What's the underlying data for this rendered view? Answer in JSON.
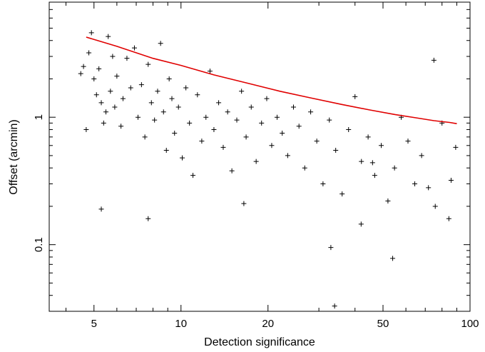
{
  "chart_data": {
    "type": "scatter",
    "title": "",
    "xlabel": "Detection significance",
    "ylabel": "Offset (arcmin)",
    "x_scale": "log",
    "y_scale": "log",
    "xlim": [
      3.5,
      100
    ],
    "ylim": [
      0.03,
      8
    ],
    "x_ticks": [
      {
        "value": 5,
        "label": "5"
      },
      {
        "value": 10,
        "label": "10"
      },
      {
        "value": 20,
        "label": "20"
      },
      {
        "value": 50,
        "label": "50"
      },
      {
        "value": 100,
        "label": "100"
      }
    ],
    "y_ticks": [
      {
        "value": 0.1,
        "label": "0.1"
      },
      {
        "value": 1,
        "label": "1"
      }
    ],
    "grid": false,
    "legend": "none",
    "colors": {
      "points": "#000000",
      "curve": "#e00000"
    },
    "points_marker": "plus",
    "series": [
      {
        "kind": "points",
        "x": [
          4.5,
          4.6,
          4.7,
          4.8,
          4.9,
          5.0,
          5.1,
          5.2,
          5.3,
          5.4,
          5.5,
          5.6,
          5.7,
          5.8,
          5.9,
          6.0,
          6.2,
          6.3,
          6.5,
          6.7,
          6.9,
          7.1,
          7.3,
          7.5,
          7.7,
          7.9,
          8.1,
          8.3,
          8.5,
          8.7,
          8.9,
          9.1,
          9.3,
          9.5,
          9.8,
          10.1,
          10.4,
          10.7,
          11.0,
          11.4,
          11.8,
          12.2,
          12.6,
          13.0,
          13.5,
          14.0,
          14.5,
          15.0,
          15.6,
          16.2,
          16.8,
          17.5,
          18.2,
          19.0,
          19.8,
          20.6,
          21.5,
          22.4,
          23.4,
          24.5,
          25.6,
          26.8,
          28.1,
          29.5,
          31.0,
          32.6,
          34.3,
          36.1,
          38.0,
          40.0,
          42.1,
          44.4,
          46.8,
          49.3,
          52.0,
          54.8,
          57.8,
          61.0,
          64.4,
          68.0,
          71.8,
          75.8,
          80.0,
          84.5,
          89.2,
          5.3,
          7.7,
          16.5,
          33.0,
          34.0,
          54.0,
          75.0,
          86.0,
          46.0,
          42.0
        ],
        "y": [
          2.2,
          2.5,
          0.8,
          3.2,
          4.6,
          2.0,
          1.5,
          2.4,
          1.3,
          0.9,
          1.1,
          4.3,
          1.6,
          3.0,
          1.2,
          2.1,
          0.85,
          1.4,
          2.9,
          1.7,
          3.5,
          1.0,
          1.8,
          0.7,
          2.6,
          1.3,
          0.95,
          1.6,
          3.8,
          1.1,
          0.55,
          2.0,
          1.4,
          0.75,
          1.2,
          0.48,
          1.7,
          0.9,
          0.35,
          1.5,
          0.65,
          1.0,
          2.3,
          0.8,
          1.3,
          0.58,
          1.1,
          0.38,
          0.95,
          1.6,
          0.7,
          1.2,
          0.45,
          0.9,
          1.4,
          0.6,
          1.0,
          0.75,
          0.5,
          1.2,
          0.85,
          0.4,
          1.1,
          0.65,
          0.3,
          0.95,
          0.55,
          0.25,
          0.8,
          1.45,
          0.45,
          0.7,
          0.35,
          0.6,
          0.22,
          0.4,
          1.0,
          0.65,
          0.3,
          0.5,
          0.28,
          0.2,
          0.9,
          0.16,
          0.58,
          0.19,
          0.16,
          0.21,
          0.095,
          0.033,
          0.078,
          2.8,
          0.32,
          0.44,
          0.145
        ]
      },
      {
        "kind": "curve",
        "x": [
          4.7,
          6,
          8,
          10,
          13,
          17,
          22,
          28,
          36,
          45,
          55,
          65,
          75,
          85,
          90
        ],
        "y": [
          4.25,
          3.6,
          2.9,
          2.55,
          2.15,
          1.85,
          1.6,
          1.42,
          1.26,
          1.14,
          1.05,
          0.99,
          0.94,
          0.91,
          0.89
        ]
      }
    ]
  }
}
